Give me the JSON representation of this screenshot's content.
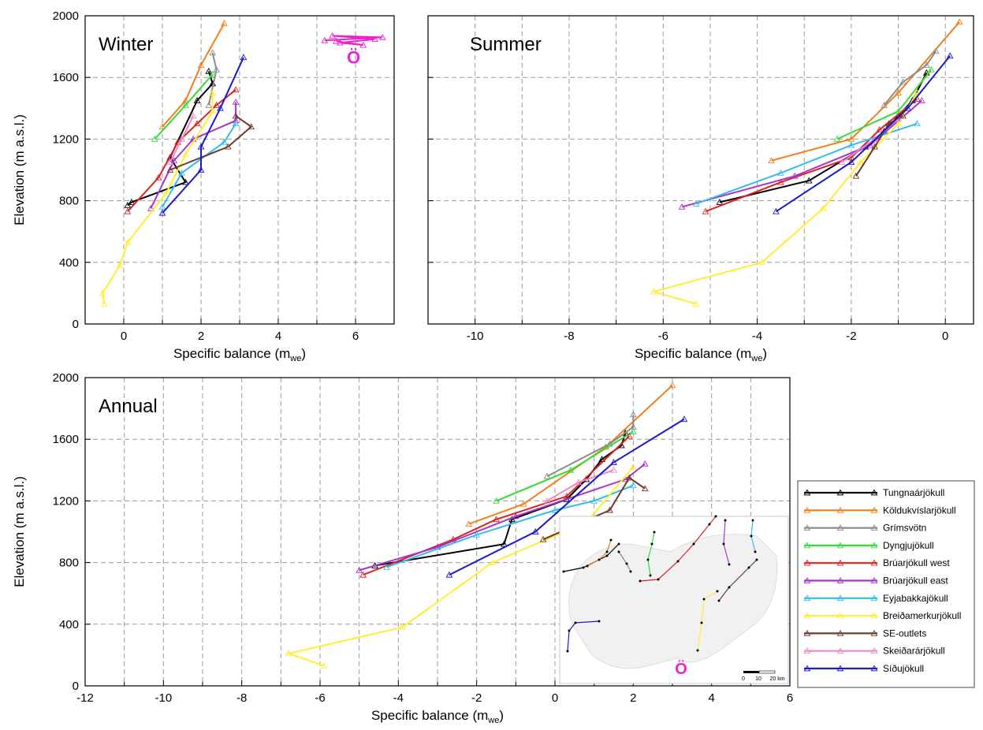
{
  "chart_data": [
    {
      "type": "line",
      "title": "Winter",
      "xlabel": "Specific balance (m",
      "xlabel_sub": "we",
      "xlabel_close": ")",
      "ylabel": "Elevation (m a.s.l.)",
      "xlim": [
        -1,
        7
      ],
      "ylim": [
        0,
        2000
      ],
      "xticks": [
        0,
        2,
        4,
        6
      ],
      "yticks": [
        0,
        400,
        800,
        1200,
        1600,
        2000
      ],
      "grid": true,
      "series": [
        {
          "name": "Tungnaárjökull",
          "color": "#000000",
          "x": [
            0.1,
            0.2,
            1.6,
            1.2,
            1.9,
            2.3,
            2.2
          ],
          "y": [
            770,
            790,
            920,
            1080,
            1450,
            1560,
            1640
          ]
        },
        {
          "name": "Köldukvíslarjökull",
          "color": "#f07f1c",
          "x": [
            1.0,
            1.6,
            2.0,
            2.6
          ],
          "y": [
            1280,
            1450,
            1680,
            1950
          ]
        },
        {
          "name": "Grímsvötn",
          "color": "#8c8c8c",
          "x": [
            2.2,
            2.4,
            2.3
          ],
          "y": [
            1420,
            1650,
            1760
          ]
        },
        {
          "name": "Dyngjujökull",
          "color": "#33dd33",
          "x": [
            0.8,
            1.6,
            2.3
          ],
          "y": [
            1200,
            1420,
            1620
          ]
        },
        {
          "name": "Brúarjökull west",
          "color": "#dd2222",
          "x": [
            0.1,
            0.9,
            1.4,
            1.9,
            2.4,
            2.9
          ],
          "y": [
            730,
            950,
            1180,
            1300,
            1420,
            1520
          ]
        },
        {
          "name": "Brúarjökull east",
          "color": "#aa33cc",
          "x": [
            0.7,
            1.3,
            1.8,
            2.9,
            2.9
          ],
          "y": [
            750,
            1060,
            1200,
            1320,
            1440
          ]
        },
        {
          "name": "Eyjabakkajökull",
          "color": "#33bbee",
          "x": [
            1.0,
            1.5,
            2.6,
            2.9
          ],
          "y": [
            760,
            980,
            1180,
            1300
          ]
        },
        {
          "name": "Breiðamerkurjökull",
          "color": "#ffee33",
          "x": [
            -0.5,
            -0.55,
            -0.1,
            0.1,
            1.1,
            1.6,
            2.3,
            2.3
          ],
          "y": [
            130,
            200,
            380,
            530,
            850,
            1100,
            1380,
            1500
          ]
        },
        {
          "name": "SE-outlets",
          "color": "#6e3b2b",
          "x": [
            1.2,
            2.7,
            3.3,
            2.9
          ],
          "y": [
            1000,
            1150,
            1280,
            1350
          ]
        },
        {
          "name": "Skeiðarárjökull",
          "color": "#ee88cc",
          "x": [
            1.2,
            1.5,
            1.8
          ],
          "y": [
            1050,
            1200,
            1350
          ]
        },
        {
          "name": "Síðujökull",
          "color": "#1a1acc",
          "x": [
            1.0,
            2.0,
            2.0,
            2.5,
            3.1
          ],
          "y": [
            720,
            1000,
            1150,
            1400,
            1730
          ]
        }
      ]
    },
    {
      "type": "line",
      "title": "Summer",
      "xlabel": "Specific balance (m",
      "xlabel_sub": "we",
      "xlabel_close": ")",
      "ylabel": "",
      "xlim": [
        -11,
        0.6
      ],
      "ylim": [
        0,
        2000
      ],
      "xticks": [
        -10,
        -8,
        -6,
        -4,
        -2,
        0
      ],
      "yticks": [
        0,
        400,
        800,
        1200,
        1600,
        2000
      ],
      "grid": true,
      "series": [
        {
          "name": "Tungnaárjökull",
          "color": "#000000",
          "x": [
            -4.8,
            -2.9,
            -1.7,
            -1.3,
            -0.7,
            -0.4
          ],
          "y": [
            790,
            930,
            1150,
            1250,
            1450,
            1630
          ]
        },
        {
          "name": "Köldukvíslarjökull",
          "color": "#f07f1c",
          "x": [
            -3.7,
            -2.0,
            -1.0,
            0.3
          ],
          "y": [
            1060,
            1200,
            1500,
            1960
          ]
        },
        {
          "name": "Grímsvötn",
          "color": "#8c8c8c",
          "x": [
            -1.3,
            -0.9,
            -0.4,
            -0.2
          ],
          "y": [
            1420,
            1570,
            1680,
            1770
          ]
        },
        {
          "name": "Dyngjujökull",
          "color": "#33dd33",
          "x": [
            -2.3,
            -1.0,
            -0.3
          ],
          "y": [
            1200,
            1380,
            1650
          ]
        },
        {
          "name": "Brúarjökull west",
          "color": "#dd2222",
          "x": [
            -5.1,
            -3.5,
            -2.0,
            -1.4,
            -0.6
          ],
          "y": [
            730,
            920,
            1080,
            1260,
            1460
          ]
        },
        {
          "name": "Brúarjökull east",
          "color": "#aa33cc",
          "x": [
            -5.6,
            -3.2,
            -1.6,
            -0.5
          ],
          "y": [
            760,
            960,
            1160,
            1450
          ]
        },
        {
          "name": "Eyjabakkajökull",
          "color": "#33bbee",
          "x": [
            -5.3,
            -3.5,
            -2.0,
            -0.6
          ],
          "y": [
            780,
            980,
            1160,
            1300
          ]
        },
        {
          "name": "Breiðamerkurjökull",
          "color": "#ffee33",
          "x": [
            -5.3,
            -6.2,
            -3.9,
            -2.6,
            -1.8,
            -1.0,
            -0.6
          ],
          "y": [
            130,
            210,
            400,
            750,
            1050,
            1300,
            1500
          ]
        },
        {
          "name": "SE-outlets",
          "color": "#6e3b2b",
          "x": [
            -1.9,
            -1.5,
            -1.2,
            -0.9
          ],
          "y": [
            960,
            1150,
            1300,
            1350
          ]
        },
        {
          "name": "Skeiðarárjökull",
          "color": "#ee88cc",
          "x": [
            -2.2,
            -1.5,
            -1.0
          ],
          "y": [
            1050,
            1200,
            1330
          ]
        },
        {
          "name": "Síðujökull",
          "color": "#1a1acc",
          "x": [
            -3.6,
            -2.0,
            -0.8,
            0.1
          ],
          "y": [
            730,
            1050,
            1400,
            1740
          ]
        }
      ]
    },
    {
      "type": "line",
      "title": "Annual",
      "xlabel": "Specific balance (m",
      "xlabel_sub": "we",
      "xlabel_close": ")",
      "ylabel": "Elevation (m a.s.l.)",
      "xlim": [
        -12,
        6
      ],
      "ylim": [
        0,
        2000
      ],
      "xticks": [
        -12,
        -10,
        -8,
        -6,
        -4,
        -2,
        0,
        2,
        4,
        6
      ],
      "yticks": [
        0,
        400,
        800,
        1200,
        1600,
        2000
      ],
      "grid": true,
      "series": [
        {
          "name": "Tungnaárjökull",
          "color": "#000000",
          "x": [
            -4.6,
            -1.3,
            -1.1,
            0.3,
            0.8,
            1.2,
            1.7,
            1.8
          ],
          "y": [
            780,
            920,
            1080,
            1210,
            1340,
            1470,
            1560,
            1640
          ]
        },
        {
          "name": "Köldukvíslarjökull",
          "color": "#f07f1c",
          "x": [
            -2.2,
            -0.8,
            1.3,
            3.0
          ],
          "y": [
            1050,
            1180,
            1550,
            1950
          ]
        },
        {
          "name": "Grímsvötn",
          "color": "#8c8c8c",
          "x": [
            -0.2,
            1.4,
            2.0,
            2.0
          ],
          "y": [
            1360,
            1570,
            1680,
            1760
          ]
        },
        {
          "name": "Dyngjujökull",
          "color": "#33dd33",
          "x": [
            -1.5,
            0.4,
            2.0
          ],
          "y": [
            1200,
            1400,
            1650
          ]
        },
        {
          "name": "Brúarjökull west",
          "color": "#dd2222",
          "x": [
            -4.9,
            -2.6,
            -1.5,
            0.3,
            1.9
          ],
          "y": [
            720,
            950,
            1080,
            1230,
            1620
          ]
        },
        {
          "name": "Brúarjökull east",
          "color": "#aa33cc",
          "x": [
            -5.0,
            -3.0,
            -1.0,
            1.8,
            2.3
          ],
          "y": [
            750,
            900,
            1100,
            1340,
            1440
          ]
        },
        {
          "name": "Eyjabakkajökull",
          "color": "#33bbee",
          "x": [
            -4.3,
            -2.0,
            0.0,
            1.0,
            2.0
          ],
          "y": [
            770,
            980,
            1140,
            1200,
            1300
          ]
        },
        {
          "name": "Breiðamerkurjökull",
          "color": "#ffee33",
          "x": [
            -5.9,
            -6.8,
            -3.9,
            -1.6,
            0.8,
            2.0
          ],
          "y": [
            130,
            210,
            380,
            800,
            1060,
            1420
          ]
        },
        {
          "name": "SE-outlets",
          "color": "#6e3b2b",
          "x": [
            -0.3,
            1.4,
            1.9,
            2.3
          ],
          "y": [
            950,
            1140,
            1350,
            1280
          ]
        },
        {
          "name": "Skeiðarárjökull",
          "color": "#ee88cc",
          "x": [
            -0.2,
            0.6,
            1.5
          ],
          "y": [
            1200,
            1320,
            1400
          ]
        },
        {
          "name": "Síðujökull",
          "color": "#1a1acc",
          "x": [
            -2.7,
            -0.5,
            1.5,
            3.3
          ],
          "y": [
            720,
            1000,
            1450,
            1730
          ]
        }
      ]
    }
  ],
  "legend": {
    "placement": "bottom-right",
    "entries": [
      {
        "name": "Tungnaárjökull",
        "color": "#000000"
      },
      {
        "name": "Köldukvíslarjökull",
        "color": "#f07f1c"
      },
      {
        "name": "Grímsvötn",
        "color": "#8c8c8c"
      },
      {
        "name": "Dyngjujökull",
        "color": "#33dd33"
      },
      {
        "name": "Brúarjökull west",
        "color": "#dd2222"
      },
      {
        "name": "Brúarjökull east",
        "color": "#aa33cc"
      },
      {
        "name": "Eyjabakkajökull",
        "color": "#33bbee"
      },
      {
        "name": "Breiðamerkurjökull",
        "color": "#ffee33"
      },
      {
        "name": "SE-outlets",
        "color": "#6e3b2b"
      },
      {
        "name": "Skeiðarárjökull",
        "color": "#ee88cc"
      },
      {
        "name": "Síðujökull",
        "color": "#1a1acc"
      }
    ]
  },
  "markers": {
    "grimsvotn_glyph": "Ö",
    "glyph_color": "#ee22cc"
  },
  "inset_map": {
    "scale_labels": [
      "0",
      "10",
      "20 km"
    ]
  }
}
